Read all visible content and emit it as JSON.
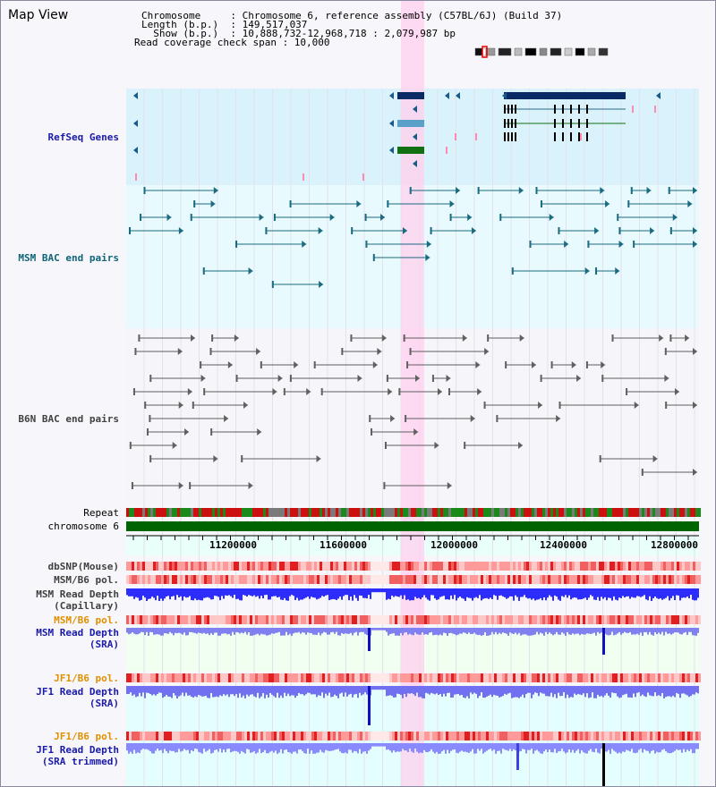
{
  "header": {
    "title": "Map View",
    "info_lines": [
      "Chromosome     : Chromosome 6, reference assembly (C57BL/6J) (Build 37)",
      "Length (b.p.)  : 149,517,037",
      "  Show (b.p.)  : 10,888,732-12,968,718 : 2,079,987 bp",
      "Read coverage check span : 10,000"
    ]
  },
  "tracks": {
    "refseq": "RefSeq Genes",
    "msm_bac": "MSM BAC end pairs",
    "b6n_bac": "B6N BAC end pairs",
    "repeat": "Repeat",
    "chromosome": "chromosome 6",
    "dbsnp": "dbSNP(Mouse)",
    "msm_b6_pol_1": "MSM/B6 pol.",
    "msm_read_depth_cap": "MSM Read Depth\n(Capillary)",
    "msm_b6_pol_2": "MSM/B6 pol.",
    "msm_read_depth_sra": "MSM Read Depth\n(SRA)",
    "jf1_b6_pol_1": "JF1/B6 pol.",
    "jf1_read_depth_sra": "JF1 Read Depth\n(SRA)",
    "jf1_b6_pol_2": "JF1/B6 pol.",
    "jf1_read_depth_trim": "JF1 Read Depth\n(SRA trimmed)"
  },
  "axis": {
    "ticks": [
      "11200000",
      "11600000",
      "12000000",
      "12400000",
      "12800000"
    ]
  },
  "colors": {
    "refseq_label": "#1a1aa8",
    "msm_label": "#106478",
    "b6n_label": "#404040",
    "orange_label": "#e09000",
    "blue_label": "#1a1aa8",
    "highlight": "#ffd0ee",
    "chrom_green": "#006400",
    "depth_blue": "#3838ff",
    "depth_light": "#8080f0"
  }
}
